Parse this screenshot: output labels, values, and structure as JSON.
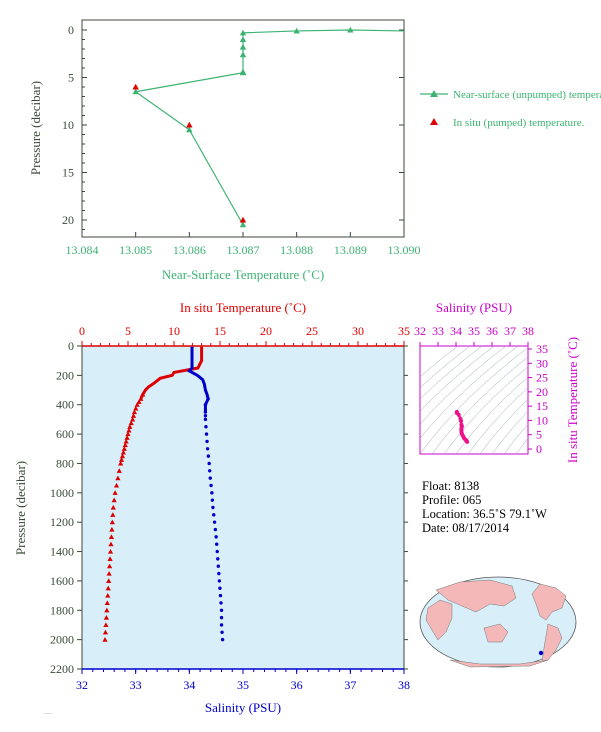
{
  "colors": {
    "axis_dark": "#3a4a3a",
    "near_surface": "#3cb371",
    "in_situ": "#dd0000",
    "salinity": "#0000cc",
    "ts_magenta": "#cc00cc",
    "plot_bg": "#d8eef8",
    "land": "#f4b8b8",
    "ocean": "#d8eef8"
  },
  "chart_data": [
    {
      "type": "line",
      "xlabel": "Near-Surface Temperature (˚C)",
      "ylabel": "Pressure (decibar)",
      "xlim": [
        13.084,
        13.09
      ],
      "ylim": [
        0,
        22
      ],
      "y_inverted": true,
      "x_ticks": [
        "13.084",
        "13.085",
        "13.086",
        "13.087",
        "13.088",
        "13.089",
        "13.090"
      ],
      "y_ticks": [
        "0",
        "5",
        "10",
        "15",
        "20"
      ],
      "series": [
        {
          "name": "Near-surface (unpumped) temperature.",
          "marker": "triangle",
          "x": [
            13.0903,
            13.089,
            13.088,
            13.087,
            13.087,
            13.087,
            13.087,
            13.087,
            13.087,
            13.085,
            13.086,
            13.087
          ],
          "y": [
            0.1,
            0.0,
            0.1,
            0.3,
            1.0,
            1.8,
            2.6,
            4.4,
            4.5,
            6.5,
            10.5,
            20.5
          ]
        },
        {
          "name": "In situ (pumped) temperature.",
          "marker": "triangle",
          "x": [
            13.085,
            13.086,
            13.087
          ],
          "y": [
            6.0,
            10.0,
            20.0
          ]
        }
      ]
    },
    {
      "type": "line",
      "top_xlabel": "In situ Temperature (˚C)",
      "bottom_xlabel": "Salinity (PSU)",
      "ylabel": "Pressure (decibar)",
      "temp_lim": [
        0,
        35
      ],
      "sal_lim": [
        32,
        38
      ],
      "ylim": [
        0,
        2200
      ],
      "y_inverted": true,
      "temp_ticks": [
        "0",
        "5",
        "10",
        "15",
        "20",
        "25",
        "30",
        "35"
      ],
      "sal_ticks": [
        "32",
        "33",
        "34",
        "35",
        "36",
        "37",
        "38"
      ],
      "y_ticks": [
        "0",
        "200",
        "400",
        "600",
        "800",
        "1000",
        "1200",
        "1400",
        "1600",
        "1800",
        "2000",
        "2200"
      ],
      "series": [
        {
          "name": "In situ Temperature",
          "pressure": [
            5,
            30,
            60,
            100,
            150,
            180,
            200,
            220,
            250,
            280,
            300,
            330,
            360,
            400,
            450,
            500,
            550,
            600,
            650,
            700,
            750,
            800,
            900,
            1000,
            1100,
            1200,
            1300,
            1400,
            1500,
            1600,
            1700,
            1800,
            1900,
            2000
          ],
          "values": [
            13.0,
            13.0,
            13.0,
            13.0,
            12.6,
            10.0,
            9.8,
            8.5,
            7.9,
            7.2,
            6.9,
            6.6,
            6.4,
            6.0,
            5.7,
            5.5,
            5.2,
            5.0,
            4.8,
            4.6,
            4.4,
            4.2,
            3.9,
            3.6,
            3.4,
            3.3,
            3.2,
            3.1,
            3.0,
            2.9,
            2.8,
            2.7,
            2.6,
            2.5
          ]
        },
        {
          "name": "Salinity",
          "pressure": [
            5,
            50,
            100,
            150,
            170,
            200,
            230,
            260,
            300,
            330,
            360,
            400,
            450,
            500,
            600,
            700,
            800,
            900,
            1000,
            1100,
            1200,
            1300,
            1400,
            1500,
            1600,
            1700,
            1800,
            1900,
            2000
          ],
          "values": [
            34.05,
            34.05,
            34.05,
            34.05,
            34.0,
            34.15,
            34.25,
            34.28,
            34.3,
            34.33,
            34.35,
            34.3,
            34.3,
            34.3,
            34.32,
            34.34,
            34.37,
            34.39,
            34.42,
            34.44,
            34.47,
            34.5,
            34.52,
            34.54,
            34.56,
            34.58,
            34.6,
            34.6,
            34.62
          ]
        }
      ]
    },
    {
      "type": "scatter",
      "top_xlabel": "Salinity (PSU)",
      "ylabel": "In situ Temperature (˚C)",
      "xlim": [
        32,
        38
      ],
      "ylim": [
        0,
        35
      ],
      "x_ticks": [
        "32",
        "33",
        "34",
        "35",
        "36",
        "37",
        "38"
      ],
      "y_ticks": [
        "0",
        "5",
        "10",
        "15",
        "20",
        "25",
        "30",
        "35"
      ],
      "x": [
        34.62,
        34.58,
        34.52,
        34.45,
        34.4,
        34.35,
        34.32,
        34.3,
        34.3,
        34.3,
        34.33,
        34.3,
        34.28,
        34.25,
        34.15,
        34.05,
        34.05
      ],
      "y": [
        2.5,
        2.9,
        3.3,
        3.8,
        4.4,
        5.0,
        5.5,
        6.0,
        6.6,
        7.2,
        7.9,
        8.5,
        9.8,
        10.5,
        12.0,
        12.6,
        13.0
      ]
    }
  ],
  "info": {
    "float": "Float:  8138",
    "profile": "Profile:  065",
    "location": "Location:  36.5˚S  79.1˚W",
    "date": "Date:  08/17/2014"
  }
}
